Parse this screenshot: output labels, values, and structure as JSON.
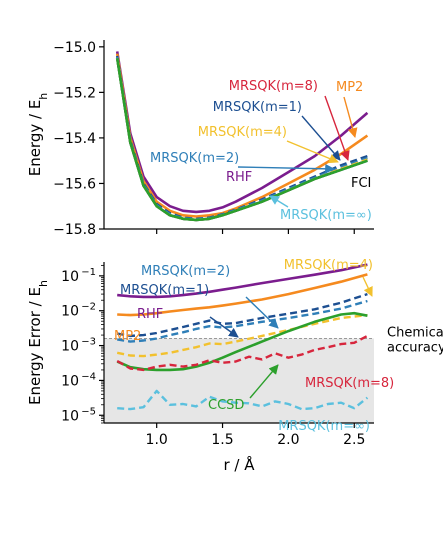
{
  "chart_data": [
    {
      "type": "line",
      "panel": "top",
      "xlim": [
        0.6,
        2.65
      ],
      "ylim": [
        -15.8,
        -14.97
      ],
      "ylabel": "Energy / E",
      "ylabel_sub": "h",
      "yticks": [
        -15.8,
        -15.6,
        -15.4,
        -15.2,
        -15.0
      ],
      "ytick_labels": [
        "−15.8",
        "−15.6",
        "−15.4",
        "−15.2",
        "−15.0"
      ],
      "grid": false,
      "series": [
        {
          "name": "RHF",
          "color": "#7b1d8e",
          "dash": "solid",
          "x": [
            0.7,
            0.8,
            0.9,
            1.0,
            1.1,
            1.2,
            1.3,
            1.4,
            1.5,
            1.6,
            1.8,
            2.0,
            2.2,
            2.4,
            2.6
          ],
          "y": [
            -15.02,
            -15.38,
            -15.57,
            -15.66,
            -15.7,
            -15.72,
            -15.725,
            -15.72,
            -15.705,
            -15.68,
            -15.62,
            -15.55,
            -15.48,
            -15.39,
            -15.29
          ]
        },
        {
          "name": "MP2",
          "color": "#f58a1f",
          "dash": "solid",
          "x": [
            0.7,
            0.8,
            0.9,
            1.0,
            1.1,
            1.2,
            1.3,
            1.4,
            1.5,
            1.6,
            1.8,
            2.0,
            2.2,
            2.4,
            2.6
          ],
          "y": [
            -15.03,
            -15.4,
            -15.59,
            -15.68,
            -15.72,
            -15.74,
            -15.745,
            -15.74,
            -15.73,
            -15.71,
            -15.66,
            -15.6,
            -15.54,
            -15.47,
            -15.39
          ]
        },
        {
          "name": "FCI",
          "color": "#000000",
          "dash": "solid",
          "x": [
            0.7,
            0.8,
            0.9,
            1.0,
            1.1,
            1.2,
            1.3,
            1.4,
            1.5,
            1.6,
            1.8,
            2.0,
            2.2,
            2.4,
            2.6
          ],
          "y": [
            -15.05,
            -15.42,
            -15.61,
            -15.7,
            -15.74,
            -15.755,
            -15.76,
            -15.755,
            -15.74,
            -15.72,
            -15.68,
            -15.63,
            -15.58,
            -15.54,
            -15.5
          ]
        },
        {
          "name": "MRSQK(m=8)",
          "color": "#d7263d",
          "dash": "dashed",
          "x": [
            0.7,
            0.8,
            0.9,
            1.0,
            1.1,
            1.2,
            1.3,
            1.4,
            1.5,
            1.6,
            1.8,
            2.0,
            2.2,
            2.4,
            2.6
          ],
          "y": [
            -15.05,
            -15.42,
            -15.61,
            -15.7,
            -15.74,
            -15.755,
            -15.76,
            -15.755,
            -15.74,
            -15.72,
            -15.68,
            -15.63,
            -15.58,
            -15.535,
            -15.495
          ]
        },
        {
          "name": "MRSQK(m=1)",
          "color": "#1d4f91",
          "dash": "dashed",
          "x": [
            0.7,
            0.8,
            0.9,
            1.0,
            1.1,
            1.2,
            1.3,
            1.4,
            1.5,
            1.6,
            1.8,
            2.0,
            2.2,
            2.4,
            2.6
          ],
          "y": [
            -15.04,
            -15.41,
            -15.6,
            -15.69,
            -15.73,
            -15.75,
            -15.755,
            -15.75,
            -15.735,
            -15.715,
            -15.67,
            -15.62,
            -15.57,
            -15.52,
            -15.48
          ]
        },
        {
          "name": "MRSQK(m=2)",
          "color": "#2f7fb8",
          "dash": "dashed",
          "x": [
            0.7,
            0.8,
            0.9,
            1.0,
            1.1,
            1.2,
            1.3,
            1.4,
            1.5,
            1.6,
            1.8,
            2.0,
            2.2,
            2.4,
            2.6
          ],
          "y": [
            -15.045,
            -15.415,
            -15.605,
            -15.695,
            -15.735,
            -15.752,
            -15.757,
            -15.752,
            -15.737,
            -15.717,
            -15.675,
            -15.625,
            -15.575,
            -15.528,
            -15.488
          ]
        },
        {
          "name": "MRSQK(m=4)",
          "color": "#f2c12e",
          "dash": "dashed",
          "x": [
            0.7,
            0.8,
            0.9,
            1.0,
            1.1,
            1.2,
            1.3,
            1.4,
            1.5,
            1.6,
            1.8,
            2.0,
            2.2,
            2.4,
            2.6
          ],
          "y": [
            -15.05,
            -15.42,
            -15.61,
            -15.7,
            -15.74,
            -15.755,
            -15.76,
            -15.755,
            -15.74,
            -15.72,
            -15.68,
            -15.63,
            -15.58,
            -15.535,
            -15.495
          ]
        },
        {
          "name": "MRSQK(m=∞)",
          "color": "#5bc0de",
          "dash": "dashed",
          "x": [
            0.7,
            0.8,
            0.9,
            1.0,
            1.1,
            1.2,
            1.3,
            1.4,
            1.5,
            1.6,
            1.8,
            2.0,
            2.2,
            2.4,
            2.6
          ],
          "y": [
            -15.05,
            -15.42,
            -15.61,
            -15.7,
            -15.74,
            -15.755,
            -15.76,
            -15.755,
            -15.74,
            -15.72,
            -15.68,
            -15.63,
            -15.58,
            -15.54,
            -15.5
          ]
        },
        {
          "name": "CCSD",
          "color": "#2ca02c",
          "dash": "solid",
          "x": [
            0.7,
            0.8,
            0.9,
            1.0,
            1.1,
            1.2,
            1.3,
            1.4,
            1.5,
            1.6,
            1.8,
            2.0,
            2.2,
            2.4,
            2.6
          ],
          "y": [
            -15.05,
            -15.42,
            -15.61,
            -15.7,
            -15.74,
            -15.755,
            -15.76,
            -15.755,
            -15.74,
            -15.72,
            -15.68,
            -15.63,
            -15.58,
            -15.54,
            -15.5
          ]
        }
      ],
      "annotations": [
        {
          "text": "MRSQK(m=8)",
          "color": "#d7263d"
        },
        {
          "text": "MP2",
          "color": "#f58a1f"
        },
        {
          "text": "MRSQK(m=1)",
          "color": "#1d4f91"
        },
        {
          "text": "MRSQK(m=4)",
          "color": "#f2c12e"
        },
        {
          "text": "MRSQK(m=2)",
          "color": "#2f7fb8"
        },
        {
          "text": "RHF",
          "color": "#7b1d8e"
        },
        {
          "text": "FCI",
          "color": "#000000"
        },
        {
          "text": "MRSQK(m=∞)",
          "color": "#5bc0de"
        }
      ]
    },
    {
      "type": "line",
      "panel": "bottom",
      "yscale": "log",
      "xlim": [
        0.6,
        2.65
      ],
      "ylim": [
        6e-06,
        0.25
      ],
      "xlabel": "r / Å",
      "ylabel": "Energy Error / E",
      "ylabel_sub": "h",
      "xticks": [
        1.0,
        1.5,
        2.0,
        2.5
      ],
      "xtick_labels": [
        "1.0",
        "1.5",
        "2.0",
        "2.5"
      ],
      "yticks": [
        1e-05,
        0.0001,
        0.001,
        0.01,
        0.1
      ],
      "ytick_labels": [
        "10",
        "10",
        "10",
        "10",
        "10"
      ],
      "ytick_exponents": [
        "−5",
        "−4",
        "−3",
        "−2",
        "−1"
      ],
      "grid": false,
      "chemical_accuracy": 0.0016,
      "chemical_accuracy_label": [
        "Chemical",
        "accuracy"
      ],
      "series": [
        {
          "name": "RHF",
          "color": "#7b1d8e",
          "dash": "solid",
          "x": [
            0.7,
            0.8,
            0.9,
            1.0,
            1.1,
            1.2,
            1.3,
            1.4,
            1.5,
            1.6,
            1.8,
            2.0,
            2.2,
            2.4,
            2.6
          ],
          "y": [
            0.028,
            0.026,
            0.025,
            0.025,
            0.026,
            0.028,
            0.031,
            0.035,
            0.04,
            0.046,
            0.062,
            0.082,
            0.108,
            0.145,
            0.21
          ]
        },
        {
          "name": "MP2",
          "color": "#f58a1f",
          "dash": "solid",
          "x": [
            0.7,
            0.8,
            0.9,
            1.0,
            1.1,
            1.2,
            1.3,
            1.4,
            1.5,
            1.6,
            1.8,
            2.0,
            2.2,
            2.4,
            2.6
          ],
          "y": [
            0.0078,
            0.0075,
            0.0078,
            0.0085,
            0.0095,
            0.0105,
            0.0115,
            0.0125,
            0.014,
            0.016,
            0.021,
            0.03,
            0.045,
            0.068,
            0.11
          ]
        },
        {
          "name": "MRSQK(m=1)",
          "color": "#1d4f91",
          "dash": "dashed",
          "x": [
            0.7,
            0.8,
            0.9,
            1.0,
            1.1,
            1.2,
            1.3,
            1.4,
            1.5,
            1.6,
            1.8,
            2.0,
            2.2,
            2.4,
            2.6
          ],
          "y": [
            0.0022,
            0.0019,
            0.002,
            0.0023,
            0.0028,
            0.0034,
            0.0042,
            0.0052,
            0.0042,
            0.0044,
            0.0062,
            0.0082,
            0.011,
            0.017,
            0.03
          ]
        },
        {
          "name": "MRSQK(m=2)",
          "color": "#2f7fb8",
          "dash": "dashed",
          "x": [
            0.7,
            0.8,
            0.9,
            1.0,
            1.1,
            1.2,
            1.3,
            1.4,
            1.5,
            1.6,
            1.8,
            2.0,
            2.2,
            2.4,
            2.6
          ],
          "y": [
            0.0015,
            0.0013,
            0.0014,
            0.0016,
            0.002,
            0.0024,
            0.003,
            0.0036,
            0.0033,
            0.0036,
            0.0048,
            0.0062,
            0.0082,
            0.0115,
            0.019
          ]
        },
        {
          "name": "MRSQK(m=4)",
          "color": "#f2c12e",
          "dash": "dashed",
          "x": [
            0.7,
            0.8,
            0.9,
            1.0,
            1.1,
            1.2,
            1.3,
            1.4,
            1.5,
            1.6,
            1.8,
            2.0,
            2.2,
            2.4,
            2.6
          ],
          "y": [
            0.00062,
            0.00052,
            0.0005,
            0.00055,
            0.00062,
            0.00075,
            0.0009,
            0.00115,
            0.0011,
            0.0013,
            0.0019,
            0.0028,
            0.0042,
            0.0062,
            0.0075
          ]
        },
        {
          "name": "CCSD",
          "color": "#2ca02c",
          "dash": "solid",
          "x": [
            0.7,
            0.8,
            0.9,
            1.0,
            1.1,
            1.2,
            1.3,
            1.4,
            1.5,
            1.6,
            1.8,
            2.0,
            2.2,
            2.4,
            2.5,
            2.6
          ],
          "y": [
            0.00035,
            0.00024,
            0.00021,
            0.0002,
            0.0002,
            0.00021,
            0.00025,
            0.00032,
            0.00045,
            0.00065,
            0.0013,
            0.0026,
            0.0048,
            0.0078,
            0.0085,
            0.0072
          ]
        },
        {
          "name": "MRSQK(m=8)",
          "color": "#d7263d",
          "dash": "dashed",
          "x": [
            0.7,
            0.8,
            0.9,
            1.0,
            1.1,
            1.2,
            1.3,
            1.4,
            1.5,
            1.6,
            1.7,
            1.8,
            1.9,
            2.0,
            2.1,
            2.2,
            2.3,
            2.4,
            2.5,
            2.6
          ],
          "y": [
            0.00036,
            0.00022,
            0.0002,
            0.00025,
            0.00028,
            0.00025,
            0.00028,
            0.00038,
            0.00032,
            0.00035,
            0.00048,
            0.0004,
            0.0006,
            0.00045,
            0.00055,
            0.00075,
            0.0009,
            0.0011,
            0.0012,
            0.0019
          ]
        },
        {
          "name": "MRSQK(m=∞)",
          "color": "#5bc0de",
          "dash": "dashed",
          "x": [
            0.7,
            0.8,
            0.9,
            1.0,
            1.1,
            1.2,
            1.3,
            1.4,
            1.5,
            1.6,
            1.7,
            1.8,
            1.9,
            2.0,
            2.1,
            2.2,
            2.3,
            2.4,
            2.5,
            2.6
          ],
          "y": [
            1.6e-05,
            1.5e-05,
            1.7e-05,
            5e-05,
            2e-05,
            2.1e-05,
            1.8e-05,
            3.4e-05,
            2.5e-05,
            2.3e-05,
            2.2e-05,
            1.8e-05,
            2.5e-05,
            2.1e-05,
            1.5e-05,
            1.6e-05,
            2.1e-05,
            2.3e-05,
            1.6e-05,
            3.2e-05
          ]
        }
      ],
      "annotations": [
        {
          "text": "MRSQK(m=2)",
          "color": "#2f7fb8"
        },
        {
          "text": "MRSQK(m=4)",
          "color": "#f2c12e"
        },
        {
          "text": "MRSQK(m=1)",
          "color": "#1d4f91"
        },
        {
          "text": "RHF",
          "color": "#7b1d8e"
        },
        {
          "text": "MP2",
          "color": "#f58a1f"
        },
        {
          "text": "MRSQK(m=8)",
          "color": "#d7263d"
        },
        {
          "text": "CCSD",
          "color": "#2ca02c"
        },
        {
          "text": "MRSQK(m=∞)",
          "color": "#5bc0de"
        }
      ]
    }
  ]
}
